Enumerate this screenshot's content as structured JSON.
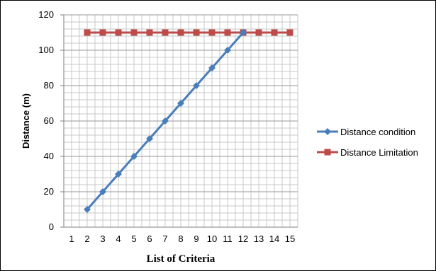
{
  "chart_data": {
    "type": "line",
    "title": "",
    "xlabel": "List of Criteria",
    "ylabel": "Distance (m)",
    "x_tick_labels": [
      "1",
      "2",
      "3",
      "4",
      "5",
      "6",
      "7",
      "8",
      "9",
      "10",
      "11",
      "12",
      "13",
      "14",
      "15"
    ],
    "xlim": [
      0.5,
      15.5
    ],
    "ylim": [
      0,
      120
    ],
    "y_ticks": [
      0,
      20,
      40,
      60,
      80,
      100,
      120
    ],
    "grid": true,
    "legend_position": "right",
    "series": [
      {
        "name": "Distance condition",
        "color": "#4a7ebb",
        "marker": "diamond",
        "x": [
          2,
          3,
          4,
          5,
          6,
          7,
          8,
          9,
          10,
          11,
          12
        ],
        "y": [
          10,
          20,
          30,
          40,
          50,
          60,
          70,
          80,
          90,
          100,
          110
        ]
      },
      {
        "name": "Distance Limitation",
        "color": "#be4b48",
        "marker": "square",
        "x": [
          2,
          3,
          4,
          5,
          6,
          7,
          8,
          9,
          10,
          11,
          12,
          13,
          14,
          15
        ],
        "y": [
          110,
          110,
          110,
          110,
          110,
          110,
          110,
          110,
          110,
          110,
          110,
          110,
          110,
          110
        ]
      }
    ]
  }
}
